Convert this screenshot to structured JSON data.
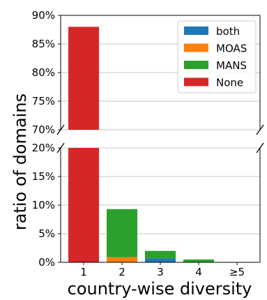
{
  "chart_data": {
    "type": "bar",
    "stacked": true,
    "broken_y_axis": true,
    "xlabel": "country-wise diversity",
    "ylabel": "ratio of domains",
    "categories": [
      "1",
      "2",
      "3",
      "4",
      "≥5"
    ],
    "series": [
      {
        "name": "both",
        "color": "#1f77b4",
        "values": [
          0,
          0,
          0.7,
          0,
          0
        ]
      },
      {
        "name": "MOAS",
        "color": "#ff7f0e",
        "values": [
          0,
          0.9,
          0,
          0,
          0
        ]
      },
      {
        "name": "MANS",
        "color": "#2ca02c",
        "values": [
          0,
          8.4,
          1.3,
          0.5,
          0
        ]
      },
      {
        "name": "None",
        "color": "#d62728",
        "values": [
          88.0,
          0,
          0,
          0,
          0
        ]
      }
    ],
    "y_unit": "%",
    "upper_ylim": [
      70,
      90
    ],
    "upper_yticks": [
      "70%",
      "75%",
      "80%",
      "85%",
      "90%"
    ],
    "lower_ylim": [
      0,
      20
    ],
    "lower_yticks": [
      "0%",
      "5%",
      "10%",
      "15%",
      "20%"
    ],
    "grid": "horizontal",
    "legend_position": "top-right"
  }
}
